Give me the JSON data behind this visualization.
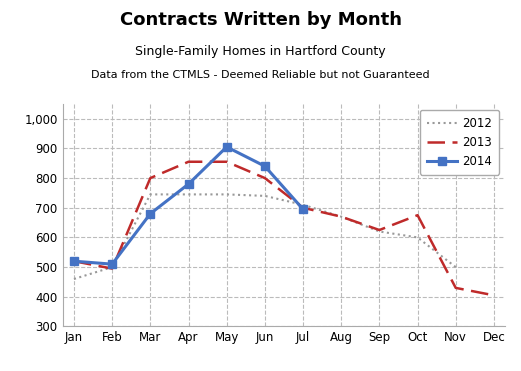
{
  "title": "Contracts Written by Month",
  "subtitle1": "Single-Family Homes in Hartford County",
  "subtitle2": "Data from the CTMLS - Deemed Reliable but not Guaranteed",
  "months": [
    "Jan",
    "Feb",
    "Mar",
    "Apr",
    "May",
    "Jun",
    "Jul",
    "Aug",
    "Sep",
    "Oct",
    "Nov",
    "Dec"
  ],
  "series": {
    "2012": [
      460,
      500,
      745,
      745,
      745,
      740,
      710,
      670,
      620,
      600,
      500,
      null
    ],
    "2013": [
      520,
      495,
      800,
      855,
      855,
      800,
      700,
      670,
      625,
      675,
      430,
      405
    ],
    "2014": [
      520,
      510,
      680,
      780,
      905,
      840,
      695,
      null,
      null,
      null,
      null,
      null
    ]
  },
  "colors": {
    "2012": "#999999",
    "2013": "#bf2a2a",
    "2014": "#4472c4"
  },
  "ylim": [
    300,
    1050
  ],
  "yticks": [
    300,
    400,
    500,
    600,
    700,
    800,
    900,
    1000
  ],
  "grid_color": "#bbbbbb",
  "title_fontsize": 13,
  "subtitle1_fontsize": 9,
  "subtitle2_fontsize": 8
}
